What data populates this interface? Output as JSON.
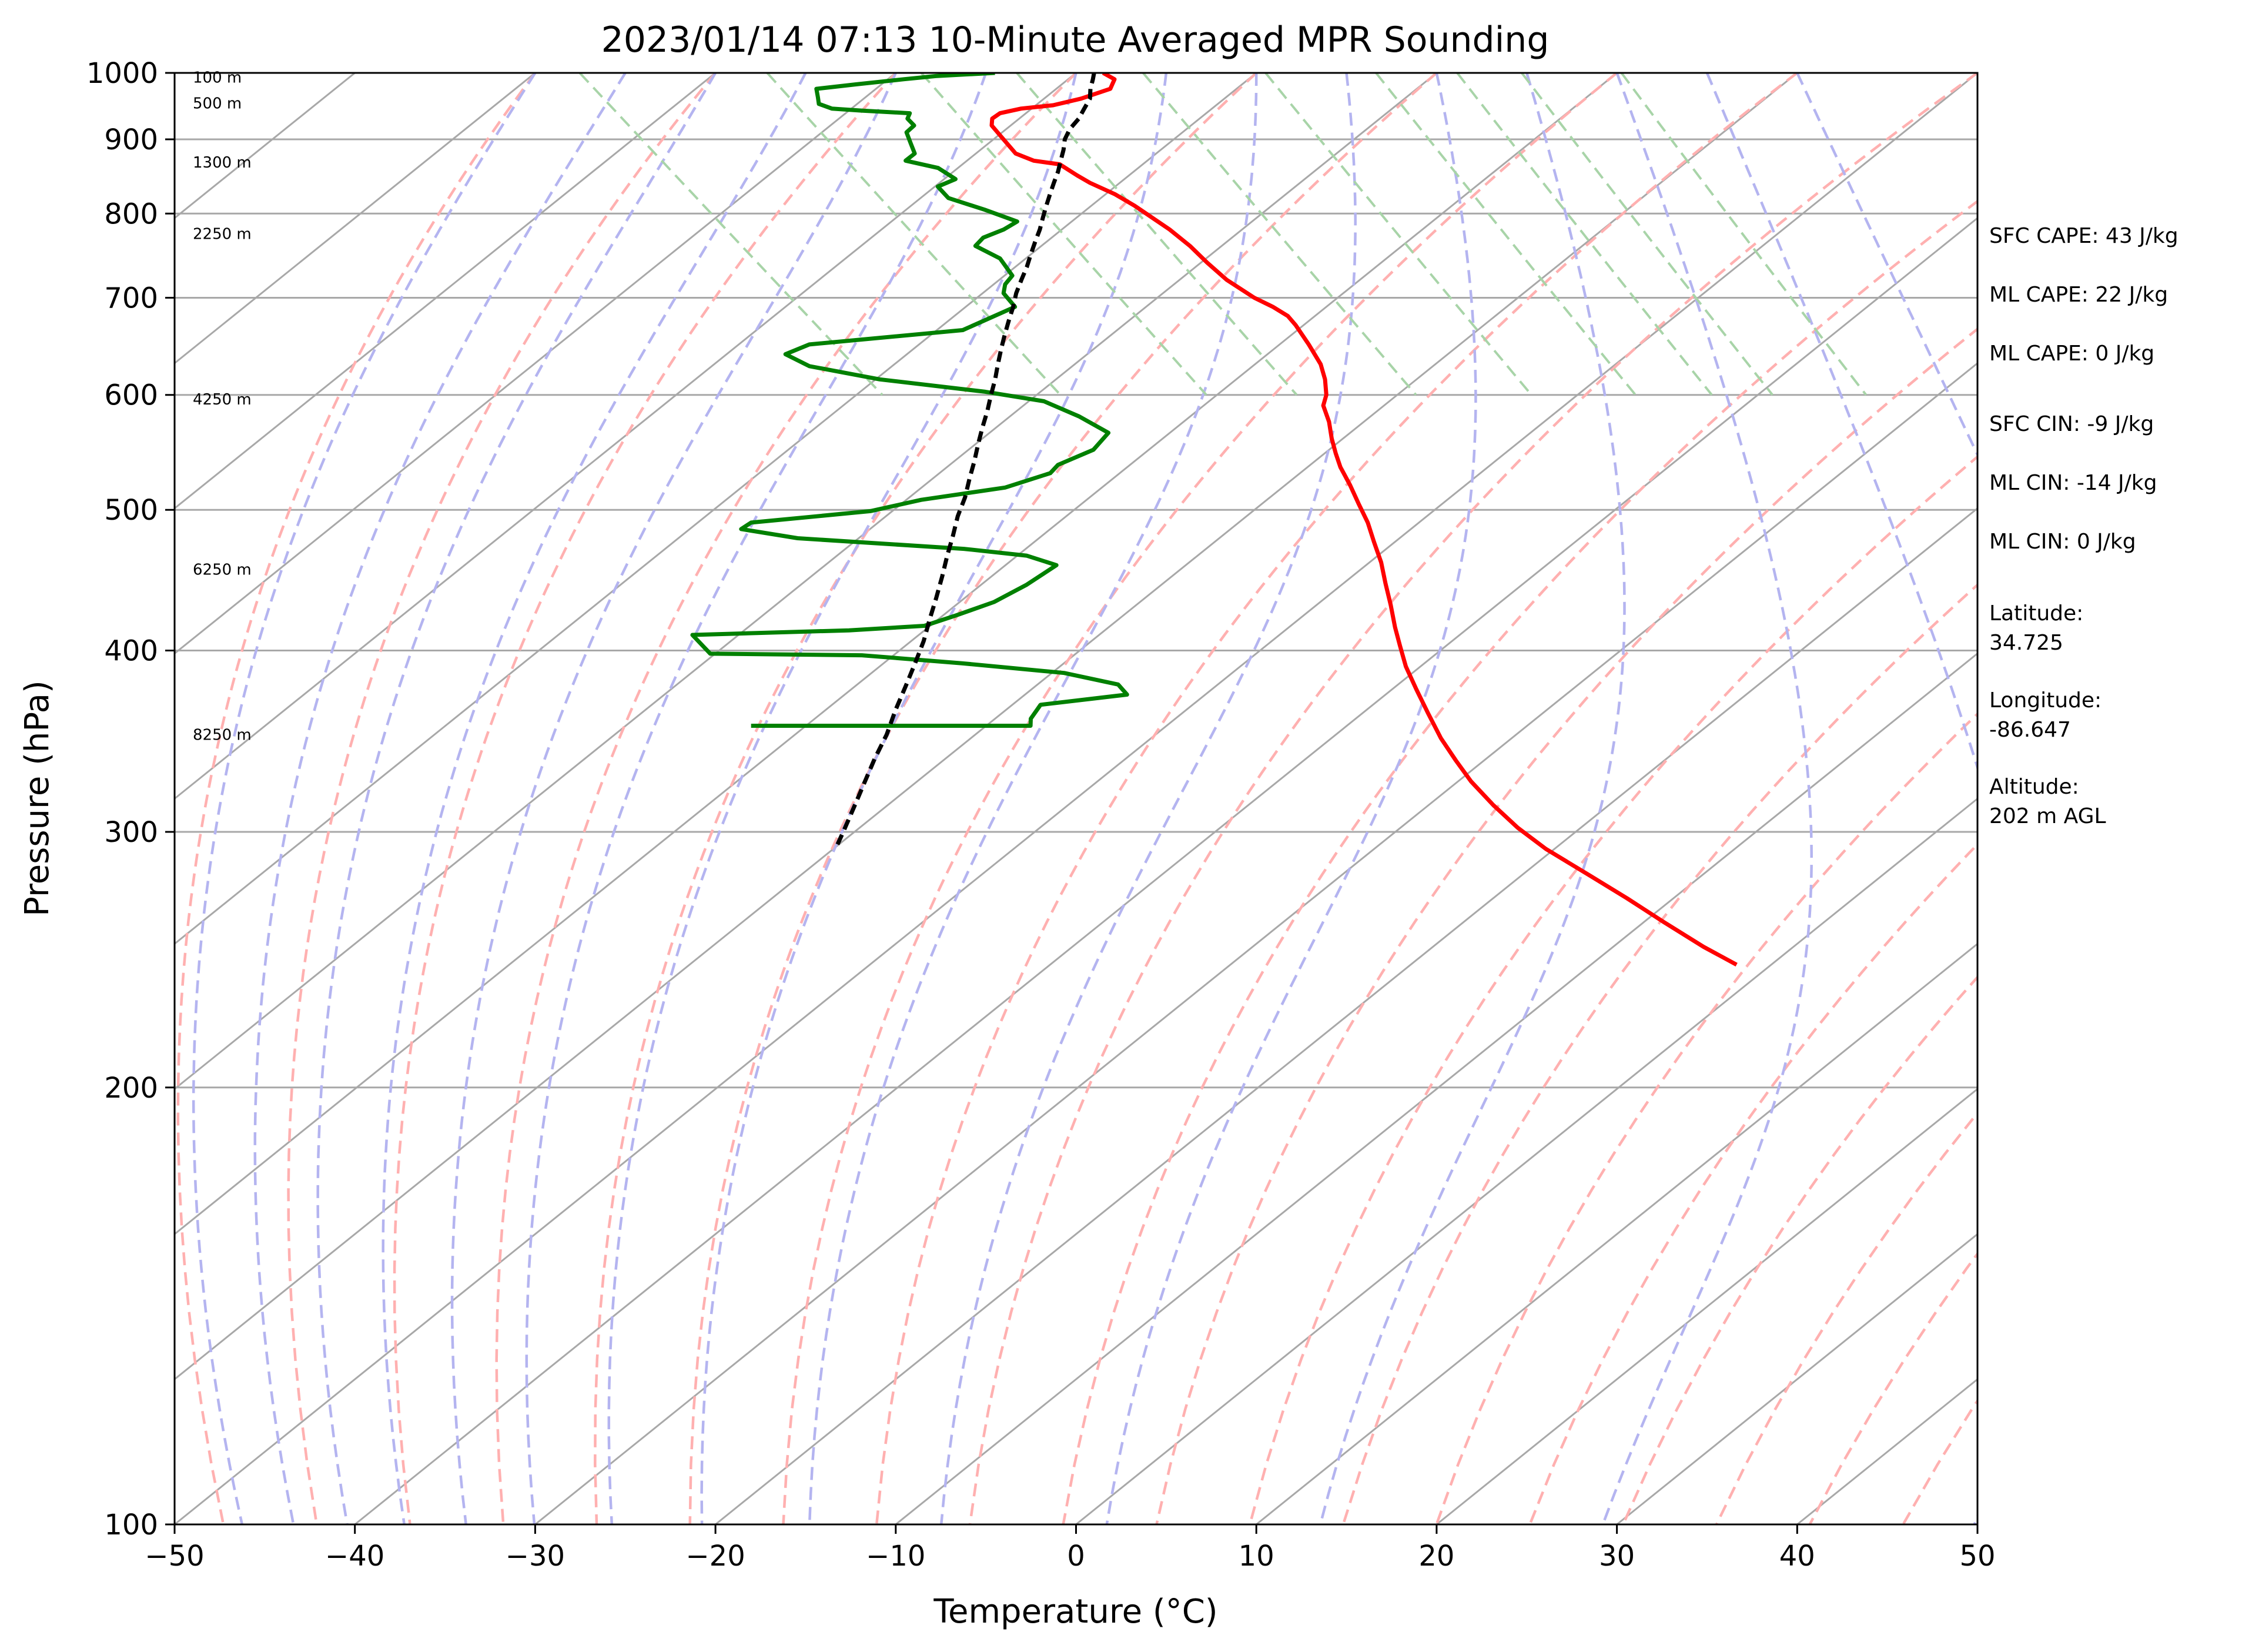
{
  "chart_data": {
    "type": "line",
    "subtype": "skew-T log-P sounding",
    "title": "2023/01/14 07:13 10-Minute Averaged MPR Sounding",
    "xlabel": "Temperature (°C)",
    "ylabel": "Pressure (hPa)",
    "xlim": [
      -50,
      50
    ],
    "ylim": [
      1000,
      100
    ],
    "y_scale": "log",
    "x_ticks": [
      "−50",
      "−40",
      "−30",
      "−20",
      "−10",
      "0",
      "10",
      "20",
      "30",
      "40",
      "50"
    ],
    "y_ticks": [
      {
        "p": 100,
        "label": "100"
      },
      {
        "p": 200,
        "label": "200"
      },
      {
        "p": 300,
        "label": "300"
      },
      {
        "p": 400,
        "label": "400"
      },
      {
        "p": 500,
        "label": "500"
      },
      {
        "p": 600,
        "label": "600"
      },
      {
        "p": 700,
        "label": "700"
      },
      {
        "p": 800,
        "label": "800"
      },
      {
        "p": 900,
        "label": "900"
      },
      {
        "p": 1000,
        "label": "1000"
      }
    ],
    "grid": true,
    "colors": {
      "temperature": "#ff0000",
      "dewpoint": "#008000",
      "parcel": "#000000",
      "isotherm": "#a8a8a8",
      "dry_adiabat": "#ffb0b0",
      "moist_adiabat": "#b4b4f0",
      "mixing_ratio": "#a8d4a8"
    },
    "series": [
      {
        "key": "temperature",
        "points": [
          [
            1.5,
            1000
          ],
          [
            1.7,
            990
          ],
          [
            0.8,
            975
          ],
          [
            -1.5,
            960
          ],
          [
            -3.5,
            950
          ],
          [
            -5.5,
            945
          ],
          [
            -7,
            938
          ],
          [
            -7.8,
            930
          ],
          [
            -8.3,
            920
          ],
          [
            -8.6,
            900
          ],
          [
            -8.9,
            880
          ],
          [
            -8.4,
            870
          ],
          [
            -7.2,
            865
          ],
          [
            -7.0,
            850
          ],
          [
            -6.8,
            840
          ],
          [
            -6.2,
            825
          ],
          [
            -5.9,
            810
          ],
          [
            -5.8,
            800
          ],
          [
            -5.6,
            780
          ],
          [
            -5.6,
            760
          ],
          [
            -5.8,
            740
          ],
          [
            -5.9,
            720
          ],
          [
            -5.6,
            700
          ],
          [
            -5.2,
            690
          ],
          [
            -5.0,
            680
          ],
          [
            -5.2,
            670
          ],
          [
            -5.8,
            650
          ],
          [
            -6.5,
            630
          ],
          [
            -7.3,
            615
          ],
          [
            -8.3,
            600
          ],
          [
            -9.2,
            590
          ],
          [
            -10.0,
            575
          ],
          [
            -11.0,
            560
          ],
          [
            -11.8,
            547
          ],
          [
            -12.5,
            535
          ],
          [
            -13.2,
            520
          ],
          [
            -14.0,
            505
          ],
          [
            -14.8,
            490
          ],
          [
            -15.8,
            475
          ],
          [
            -16.8,
            460
          ],
          [
            -18.0,
            445
          ],
          [
            -19.2,
            430
          ],
          [
            -20.5,
            415
          ],
          [
            -21.5,
            403
          ],
          [
            -22.6,
            390
          ],
          [
            -23.6,
            376
          ],
          [
            -24.6,
            362
          ],
          [
            -25.6,
            348
          ],
          [
            -26.3,
            336
          ],
          [
            -26.9,
            325
          ],
          [
            -27.3,
            313
          ],
          [
            -27.5,
            302
          ],
          [
            -27.4,
            292
          ],
          [
            -26.8,
            280
          ],
          [
            -26.3,
            270
          ],
          [
            -25.9,
            260
          ],
          [
            -25.4,
            250
          ],
          [
            -24.8,
            243
          ]
        ]
      },
      {
        "key": "dewpoint",
        "points": [
          [
            -4.5,
            1000
          ],
          [
            -8,
            995
          ],
          [
            -10,
            990
          ],
          [
            -13,
            982
          ],
          [
            -15.5,
            975
          ],
          [
            -16,
            962
          ],
          [
            -16.4,
            952
          ],
          [
            -16,
            945
          ],
          [
            -14.5,
            942
          ],
          [
            -12,
            938
          ],
          [
            -12.5,
            930
          ],
          [
            -12.6,
            920
          ],
          [
            -13.5,
            910
          ],
          [
            -14,
            895
          ],
          [
            -14.5,
            880
          ],
          [
            -15.5,
            870
          ],
          [
            -14.2,
            860
          ],
          [
            -14,
            845
          ],
          [
            -15.5,
            835
          ],
          [
            -15.7,
            820
          ],
          [
            -14.5,
            805
          ],
          [
            -13.5,
            790
          ],
          [
            -14.8,
            780
          ],
          [
            -16.5,
            770
          ],
          [
            -17.5,
            760
          ],
          [
            -17,
            745
          ],
          [
            -17.5,
            725
          ],
          [
            -18.5,
            715
          ],
          [
            -19.2,
            705
          ],
          [
            -19.5,
            690
          ],
          [
            -24,
            665
          ],
          [
            -33.5,
            650
          ],
          [
            -35.5,
            640
          ],
          [
            -35,
            628
          ],
          [
            -32,
            615
          ],
          [
            -27,
            603
          ],
          [
            -24.4,
            594
          ],
          [
            -23.5,
            580
          ],
          [
            -23,
            565
          ],
          [
            -25,
            550
          ],
          [
            -28,
            537
          ],
          [
            -29,
            530
          ],
          [
            -32.5,
            518
          ],
          [
            -38,
            508
          ],
          [
            -41.6,
            499
          ],
          [
            -49,
            490
          ],
          [
            -50,
            485
          ],
          [
            -47.5,
            478
          ],
          [
            -39,
            470
          ],
          [
            -36,
            465
          ],
          [
            -35,
            458
          ],
          [
            -38,
            444
          ],
          [
            -41,
            432
          ],
          [
            -44,
            423
          ],
          [
            -46.5,
            416
          ],
          [
            -51,
            413
          ],
          [
            -60,
            410
          ],
          [
            -60.3,
            398
          ],
          [
            -52,
            397
          ],
          [
            -47,
            392
          ],
          [
            -42,
            386
          ],
          [
            -39.8,
            379
          ],
          [
            -40,
            373
          ],
          [
            -45.5,
            367
          ],
          [
            -47,
            359
          ],
          [
            -47.5,
            355
          ],
          [
            -53,
            355
          ],
          [
            -63,
            355
          ]
        ]
      },
      {
        "key": "parcel",
        "points": [
          [
            1.0,
            1000
          ],
          [
            0.5,
            990
          ],
          [
            -0.3,
            975
          ],
          [
            -1.0,
            960
          ],
          [
            -2.0,
            945
          ],
          [
            -3.0,
            930
          ],
          [
            -4.2,
            915
          ],
          [
            -5.2,
            900
          ],
          [
            -6.0,
            885
          ],
          [
            -6.9,
            870
          ],
          [
            -7.8,
            855
          ],
          [
            -8.8,
            840
          ],
          [
            -9.8,
            825
          ],
          [
            -10.8,
            810
          ],
          [
            -11.8,
            795
          ],
          [
            -12.8,
            780
          ],
          [
            -13.9,
            765
          ],
          [
            -15.0,
            750
          ],
          [
            -16.1,
            735
          ],
          [
            -17.3,
            720
          ],
          [
            -18.5,
            705
          ],
          [
            -19.6,
            690
          ],
          [
            -20.8,
            675
          ],
          [
            -22.0,
            660
          ],
          [
            -23.2,
            645
          ],
          [
            -24.4,
            630
          ],
          [
            -25.6,
            615
          ],
          [
            -26.9,
            600
          ],
          [
            -28.2,
            585
          ],
          [
            -29.6,
            570
          ],
          [
            -31.0,
            555
          ],
          [
            -32.4,
            540
          ],
          [
            -33.9,
            525
          ],
          [
            -35.4,
            510
          ],
          [
            -37.1,
            495
          ],
          [
            -38.7,
            480
          ],
          [
            -40.4,
            465
          ],
          [
            -42.1,
            450
          ],
          [
            -43.9,
            435
          ],
          [
            -45.8,
            420
          ],
          [
            -47.6,
            406
          ],
          [
            -49.6,
            392
          ],
          [
            -51.7,
            378
          ],
          [
            -53.9,
            364
          ],
          [
            -56.1,
            350
          ],
          [
            -58.4,
            337
          ],
          [
            -60.7,
            324
          ],
          [
            -62.9,
            312
          ],
          [
            -65.2,
            300
          ],
          [
            -66.4,
            294
          ]
        ]
      }
    ],
    "height_labels": [
      {
        "p": 350,
        "label": "8250 m"
      },
      {
        "p": 455,
        "label": "6250 m"
      },
      {
        "p": 596,
        "label": "4250 m"
      },
      {
        "p": 775,
        "label": "2250 m"
      },
      {
        "p": 868,
        "label": "1300 m"
      },
      {
        "p": 953,
        "label": "500 m"
      },
      {
        "p": 993,
        "label": "100 m"
      }
    ]
  },
  "info_panel": [
    {
      "text": "SFC CAPE: 43 J/kg"
    },
    {
      "text": "ML CAPE: 22 J/kg"
    },
    {
      "text": "ML CAPE: 0 J/kg"
    },
    {
      "text": "SFC CIN: -9 J/kg"
    },
    {
      "text": "ML CIN: -14 J/kg"
    },
    {
      "text": "ML CIN: 0 J/kg"
    },
    {
      "text": "Latitude:"
    },
    {
      "text": "34.725"
    },
    {
      "text": "Longitude:"
    },
    {
      "text": "-86.647"
    },
    {
      "text": "Altitude:"
    },
    {
      "text": "202 m AGL"
    }
  ]
}
